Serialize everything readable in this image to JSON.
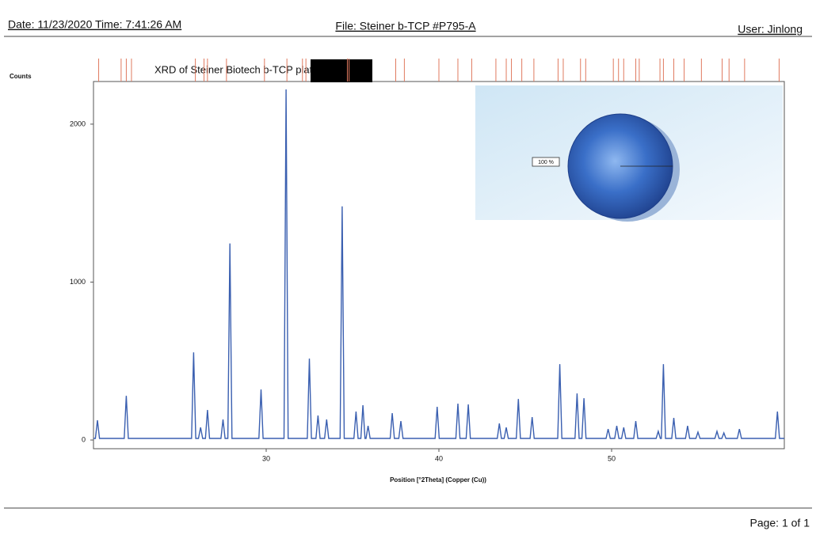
{
  "header": {
    "date": "Date: 11/23/2020 Time: 7:41:26 AM",
    "file": "File: Steiner b-TCP #P795-A",
    "user": "User: Jinlong"
  },
  "chart_data": [
    {
      "type": "line",
      "title": "XRD of Steiner Biotech b-TCP plate",
      "y_label": "Counts",
      "x_label": "Position [°2Theta] (Copper (Cu))",
      "color": "#3a5fb0",
      "reference_color": "#e07a5f",
      "xlim": [
        20,
        60
      ],
      "xticks": [
        30,
        40,
        50
      ],
      "ylim": [
        -55,
        2270
      ],
      "yticks": [
        0,
        1000,
        2000
      ],
      "x": [
        20.0,
        20.11,
        20.23,
        20.35,
        21.78,
        21.9,
        22.02,
        25.68,
        25.8,
        25.92,
        26.08,
        26.2,
        26.32,
        26.48,
        26.6,
        26.72,
        27.38,
        27.5,
        27.62,
        27.78,
        27.9,
        28.02,
        29.58,
        29.7,
        29.82,
        31.03,
        31.15,
        31.27,
        32.38,
        32.5,
        32.62,
        32.88,
        33.0,
        33.12,
        33.38,
        33.5,
        33.62,
        34.28,
        34.4,
        34.52,
        35.08,
        35.2,
        35.32,
        35.48,
        35.6,
        35.72,
        35.78,
        35.9,
        36.02,
        37.18,
        37.3,
        37.42,
        37.68,
        37.8,
        37.92,
        39.78,
        39.9,
        40.02,
        40.98,
        41.1,
        41.22,
        41.58,
        41.7,
        41.82,
        43.38,
        43.5,
        43.62,
        43.78,
        43.9,
        44.02,
        44.48,
        44.6,
        44.72,
        45.28,
        45.4,
        45.52,
        46.88,
        47.0,
        47.12,
        47.88,
        48.0,
        48.12,
        48.28,
        48.4,
        48.52,
        49.68,
        49.8,
        49.92,
        50.18,
        50.3,
        50.42,
        50.58,
        50.7,
        50.82,
        51.28,
        51.4,
        51.52,
        52.58,
        52.7,
        52.82,
        52.88,
        53.0,
        53.12,
        53.48,
        53.6,
        53.72,
        54.28,
        54.4,
        54.52,
        54.88,
        55.0,
        55.12,
        55.98,
        56.1,
        56.22,
        56.38,
        56.5,
        56.62,
        57.28,
        57.4,
        57.52,
        59.48,
        59.6,
        59.72,
        60.0
      ],
      "values": [
        10,
        10,
        125,
        10,
        10,
        280,
        10,
        10,
        555,
        10,
        10,
        80,
        10,
        10,
        190,
        10,
        10,
        130,
        10,
        10,
        1245,
        10,
        10,
        320,
        10,
        10,
        2220,
        10,
        10,
        515,
        10,
        10,
        155,
        10,
        10,
        130,
        10,
        10,
        1480,
        10,
        10,
        180,
        10,
        10,
        220,
        10,
        10,
        90,
        10,
        10,
        170,
        10,
        10,
        120,
        10,
        10,
        210,
        10,
        10,
        230,
        10,
        10,
        225,
        10,
        10,
        105,
        10,
        10,
        80,
        10,
        10,
        260,
        10,
        10,
        145,
        10,
        10,
        480,
        10,
        10,
        295,
        10,
        10,
        265,
        10,
        10,
        70,
        10,
        10,
        90,
        10,
        10,
        80,
        10,
        10,
        120,
        10,
        10,
        55,
        10,
        10,
        480,
        10,
        10,
        140,
        10,
        10,
        90,
        10,
        10,
        50,
        10,
        10,
        55,
        10,
        10,
        45,
        10,
        10,
        70,
        10,
        10,
        180,
        10,
        10
      ],
      "reference_positions": [
        20.3,
        21.6,
        21.9,
        22.2,
        25.9,
        26.4,
        26.6,
        27.7,
        29.9,
        31.2,
        32.1,
        32.3,
        34.7,
        34.8,
        37.5,
        38.0,
        40.0,
        41.1,
        41.9,
        43.3,
        43.9,
        44.2,
        44.8,
        45.5,
        46.9,
        47.2,
        48.2,
        48.5,
        50.1,
        50.4,
        50.7,
        51.4,
        51.6,
        52.8,
        53.0,
        53.6,
        54.2,
        55.2,
        56.4,
        56.8,
        57.7,
        59.7
      ]
    },
    {
      "type": "pie",
      "values": [
        100
      ],
      "value_labels": [
        "100 %"
      ],
      "color": "#3a6fc8"
    }
  ],
  "footer": {
    "page": "Page: 1 of 1"
  }
}
